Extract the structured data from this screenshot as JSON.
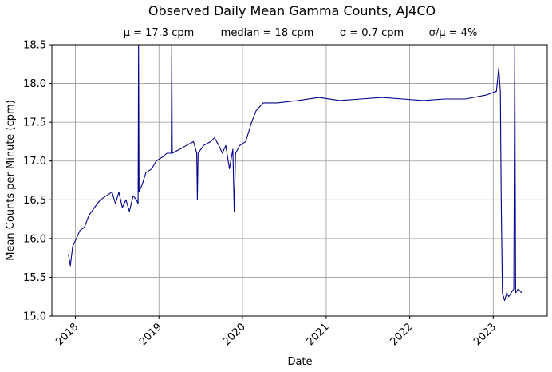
{
  "chart_data": {
    "type": "line",
    "title": "Observed Daily Mean Gamma Counts, AJ4CO",
    "stats": [
      "μ = 17.3 cpm",
      "median = 18 cpm",
      "σ = 0.7 cpm",
      "σ/μ = 4%"
    ],
    "xlabel": "Date",
    "ylabel": "Mean Counts per Minute (cpm)",
    "xlim": [
      "2017-09-20",
      "2023-08-25"
    ],
    "ylim": [
      15.0,
      18.5
    ],
    "xticks": [
      {
        "date": "2018-01-01",
        "label": "2018"
      },
      {
        "date": "2019-01-01",
        "label": "2019"
      },
      {
        "date": "2020-01-01",
        "label": "2020"
      },
      {
        "date": "2021-01-01",
        "label": "2021"
      },
      {
        "date": "2022-01-01",
        "label": "2022"
      },
      {
        "date": "2023-01-01",
        "label": "2023"
      }
    ],
    "yticks": [
      15.0,
      15.5,
      16.0,
      16.5,
      17.0,
      17.5,
      18.0,
      18.5
    ],
    "grid": true,
    "line_color": "#00008b",
    "series": [
      {
        "values": [
          [
            "2017-12-01",
            15.8
          ],
          [
            "2017-12-10",
            15.65
          ],
          [
            "2017-12-20",
            15.9
          ],
          [
            "2018-01-05",
            16.0
          ],
          [
            "2018-01-20",
            16.1
          ],
          [
            "2018-02-10",
            16.15
          ],
          [
            "2018-03-01",
            16.3
          ],
          [
            "2018-03-25",
            16.4
          ],
          [
            "2018-04-20",
            16.5
          ],
          [
            "2018-05-15",
            16.55
          ],
          [
            "2018-06-10",
            16.6
          ],
          [
            "2018-06-25",
            16.45
          ],
          [
            "2018-07-10",
            16.6
          ],
          [
            "2018-07-25",
            16.4
          ],
          [
            "2018-08-10",
            16.5
          ],
          [
            "2018-08-25",
            16.35
          ],
          [
            "2018-09-10",
            16.55
          ],
          [
            "2018-09-25",
            16.5
          ],
          [
            "2018-10-02",
            16.45
          ],
          [
            "2018-10-04",
            18.5
          ],
          [
            "2018-10-06",
            16.6
          ],
          [
            "2018-10-20",
            16.7
          ],
          [
            "2018-11-05",
            16.85
          ],
          [
            "2018-12-01",
            16.9
          ],
          [
            "2018-12-20",
            17.0
          ],
          [
            "2019-01-15",
            17.05
          ],
          [
            "2019-02-05",
            17.1
          ],
          [
            "2019-02-24",
            17.1
          ],
          [
            "2019-02-26",
            18.5
          ],
          [
            "2019-02-28",
            17.1
          ],
          [
            "2019-04-01",
            17.15
          ],
          [
            "2019-05-01",
            17.2
          ],
          [
            "2019-06-01",
            17.25
          ],
          [
            "2019-06-15",
            17.1
          ],
          [
            "2019-06-18",
            16.5
          ],
          [
            "2019-06-21",
            17.1
          ],
          [
            "2019-07-15",
            17.2
          ],
          [
            "2019-08-15",
            17.25
          ],
          [
            "2019-09-01",
            17.3
          ],
          [
            "2019-09-20",
            17.2
          ],
          [
            "2019-10-05",
            17.1
          ],
          [
            "2019-10-20",
            17.2
          ],
          [
            "2019-11-05",
            16.9
          ],
          [
            "2019-11-20",
            17.15
          ],
          [
            "2019-11-26",
            16.35
          ],
          [
            "2019-12-02",
            17.1
          ],
          [
            "2019-12-20",
            17.2
          ],
          [
            "2020-01-15",
            17.25
          ],
          [
            "2020-02-10",
            17.5
          ],
          [
            "2020-03-01",
            17.65
          ],
          [
            "2020-04-01",
            17.75
          ],
          [
            "2020-06-01",
            17.75
          ],
          [
            "2020-09-01",
            17.78
          ],
          [
            "2020-12-01",
            17.82
          ],
          [
            "2021-03-01",
            17.78
          ],
          [
            "2021-06-01",
            17.8
          ],
          [
            "2021-09-01",
            17.82
          ],
          [
            "2021-12-01",
            17.8
          ],
          [
            "2022-03-01",
            17.78
          ],
          [
            "2022-06-01",
            17.8
          ],
          [
            "2022-09-01",
            17.8
          ],
          [
            "2022-12-01",
            17.85
          ],
          [
            "2023-01-15",
            17.9
          ],
          [
            "2023-01-25",
            18.2
          ],
          [
            "2023-02-01",
            17.9
          ],
          [
            "2023-02-05",
            16.5
          ],
          [
            "2023-02-10",
            15.3
          ],
          [
            "2023-02-20",
            15.2
          ],
          [
            "2023-03-01",
            15.3
          ],
          [
            "2023-03-10",
            15.25
          ],
          [
            "2023-03-20",
            15.3
          ],
          [
            "2023-04-01",
            15.35
          ],
          [
            "2023-04-05",
            18.5
          ],
          [
            "2023-04-09",
            15.3
          ],
          [
            "2023-04-20",
            15.35
          ],
          [
            "2023-05-05",
            15.3
          ]
        ]
      }
    ]
  }
}
